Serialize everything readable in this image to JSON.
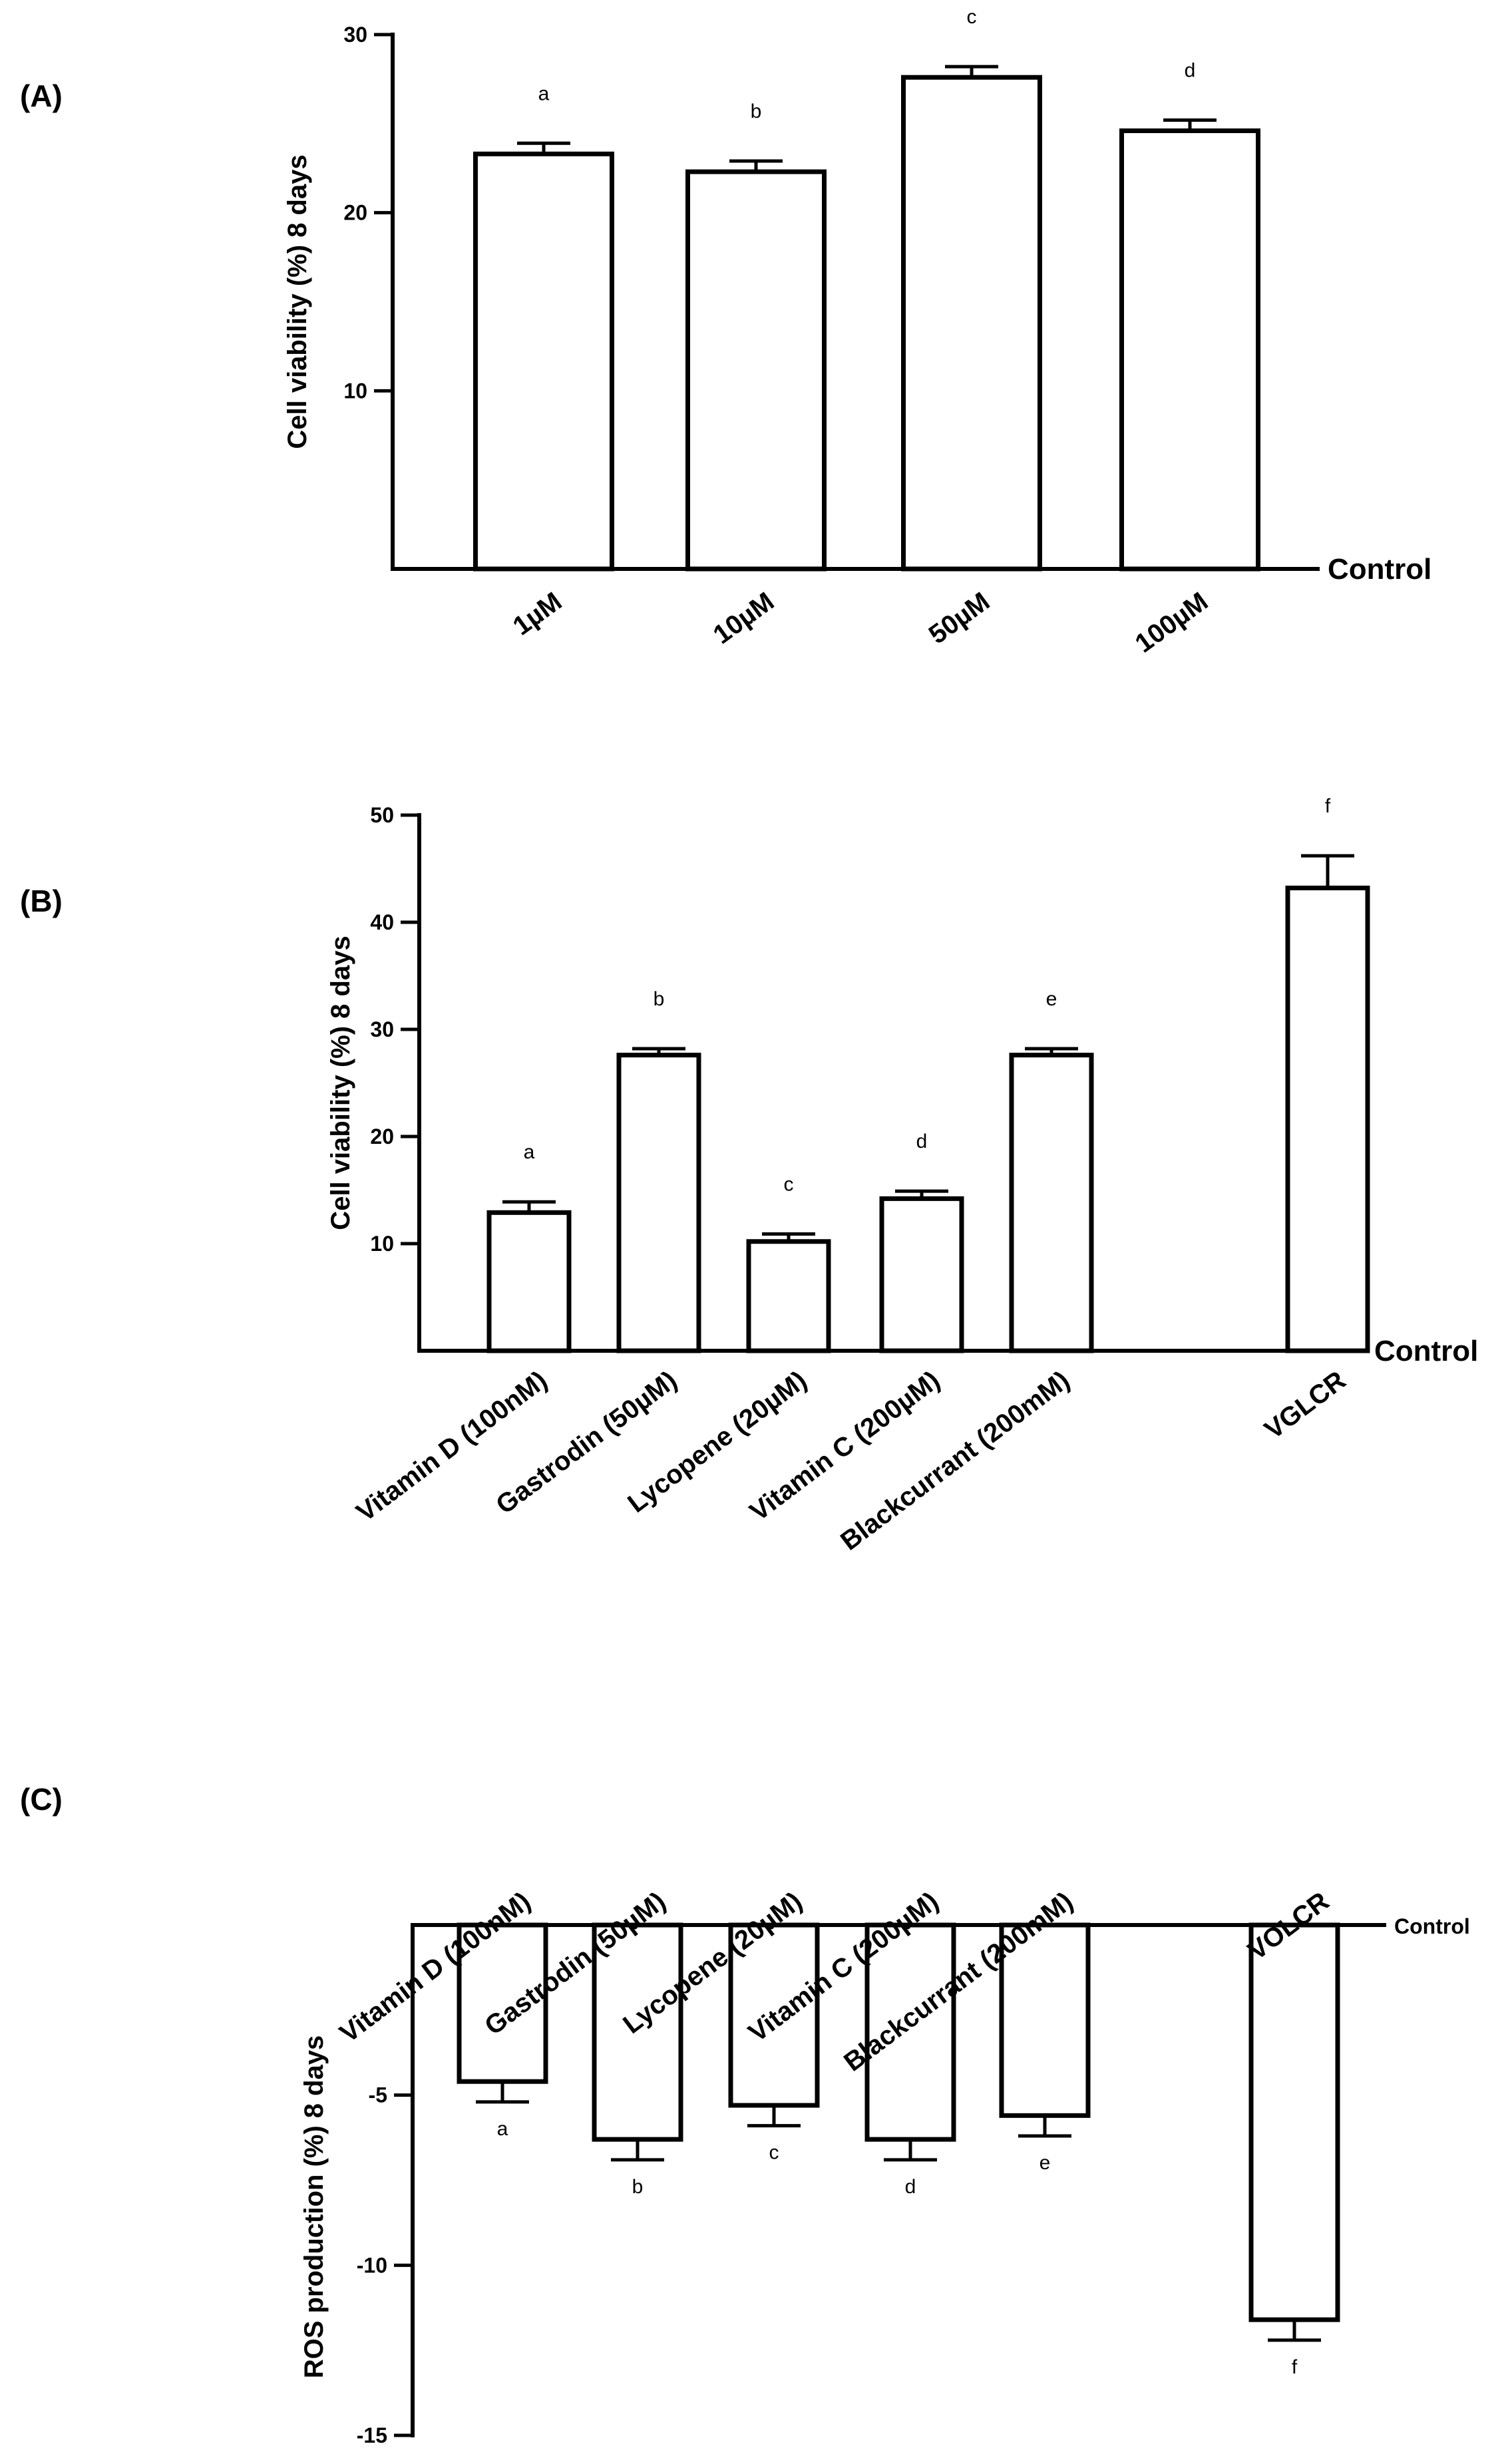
{
  "chart_data": [
    {
      "panel_label": "(A)",
      "type": "bar",
      "ylabel": "Cell viability (%) 8 days",
      "baseline_label": "Control",
      "ylim": [
        0,
        30
      ],
      "yticks": [
        10,
        20,
        30
      ],
      "categories": [
        "1µM",
        "10µM",
        "50µM",
        "100µM"
      ],
      "values": [
        23.3,
        22.3,
        27.6,
        24.6
      ],
      "errors": [
        0.6,
        0.6,
        0.6,
        0.6
      ],
      "significance": [
        "a",
        "b",
        "c",
        "d"
      ]
    },
    {
      "panel_label": "(B)",
      "type": "bar",
      "ylabel": "Cell viability (%) 8 days",
      "baseline_label": "Control",
      "ylim": [
        0,
        50
      ],
      "yticks": [
        10,
        20,
        30,
        40,
        50
      ],
      "categories": [
        "Vitamin D (100nM)",
        "Gastrodin (50µM)",
        "Lycopene (20µM)",
        "Vitamin C (200µM)",
        "Blackcurrant (200mM)",
        "VGLCR"
      ],
      "values": [
        12.9,
        27.6,
        10.2,
        14.2,
        27.6,
        43.2
      ],
      "errors": [
        1.0,
        0.6,
        0.7,
        0.7,
        0.6,
        3.0
      ],
      "significance": [
        "a",
        "b",
        "c",
        "d",
        "e",
        "f"
      ]
    },
    {
      "panel_label": "(C)",
      "type": "bar",
      "ylabel": "ROS production (%) 8 days",
      "baseline_label": "Control",
      "ylim": [
        -15,
        0
      ],
      "yticks": [
        -5,
        -10,
        -15
      ],
      "categories": [
        "Vitamin D (100nM)",
        "Gastrodin (50µM)",
        "Lycopene (20µM)",
        "Vitamin C (200µM)",
        "Blackcurrant (200mM)",
        "VOLCR"
      ],
      "values": [
        -4.6,
        -6.3,
        -5.3,
        -6.3,
        -5.6,
        -11.6
      ],
      "errors": [
        0.6,
        0.6,
        0.6,
        0.6,
        0.6,
        0.6
      ],
      "significance": [
        "a",
        "b",
        "c",
        "d",
        "e",
        "f"
      ]
    }
  ]
}
